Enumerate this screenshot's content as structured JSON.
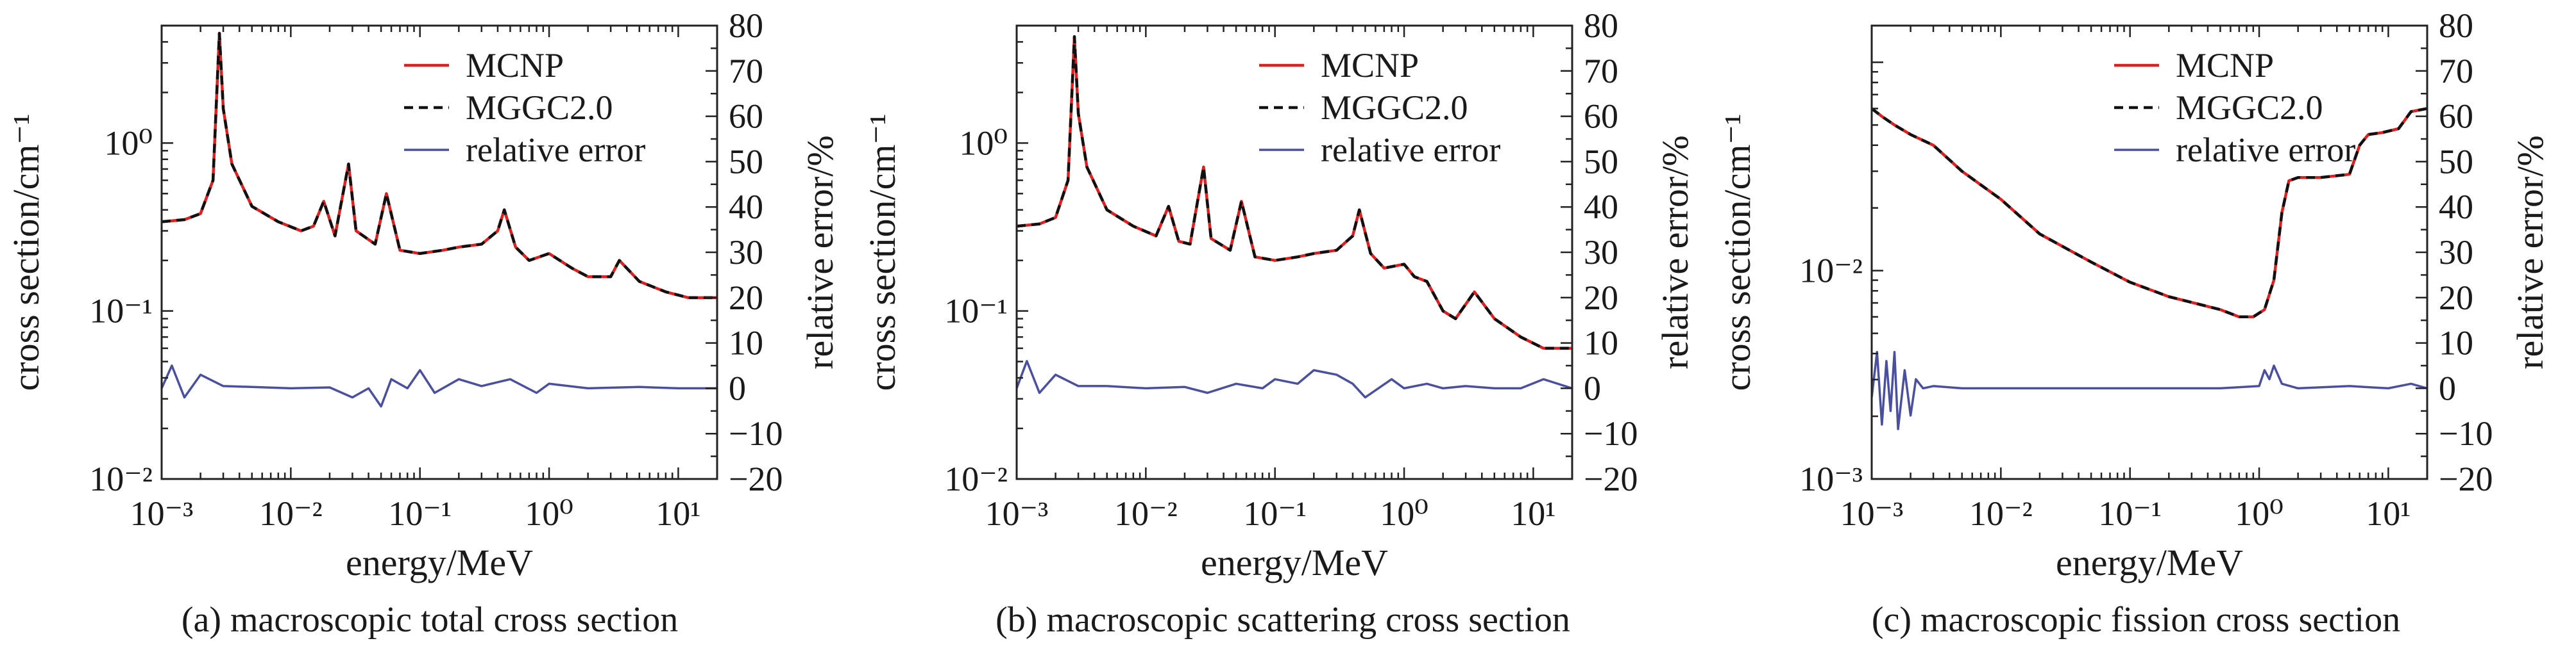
{
  "figure": {
    "captions": [
      "(a) macroscopic total cross section",
      "(b) macroscopic scattering cross section",
      "(c) macroscopic fission cross section"
    ]
  },
  "colors": {
    "mcnp": "#e02020",
    "mggc": "#111111",
    "error": "#4a4fa0"
  },
  "chart_data": [
    {
      "type": "line",
      "title": "",
      "xlabel": "energy/MeV",
      "ylabel": "cross section/cm⁻¹",
      "y2label": "relative error/%",
      "xscale": "log",
      "yscale": "log",
      "xlim": [
        0.001,
        20
      ],
      "ylim": [
        0.01,
        5
      ],
      "y2lim": [
        -20,
        80
      ],
      "x_ticks": [
        0.001,
        0.01,
        0.1,
        1,
        10
      ],
      "x_tick_labels": [
        "10⁻³",
        "10⁻²",
        "10⁻¹",
        "10⁰",
        "10¹"
      ],
      "y_ticks": [
        0.01,
        0.1,
        1
      ],
      "y_tick_labels": [
        "10⁻²",
        "10⁻¹",
        "10⁰"
      ],
      "y2_ticks": [
        -20,
        -10,
        0,
        10,
        20,
        30,
        40,
        50,
        60,
        70,
        80
      ],
      "y2_tick_labels": [
        "−20",
        "−10",
        "0",
        "10",
        "20",
        "30",
        "40",
        "50",
        "60",
        "70",
        "80"
      ],
      "legend_position": "top-right",
      "series": [
        {
          "name": "MCNP",
          "axis": "left",
          "style": "solid",
          "x": [
            0.001,
            0.0015,
            0.002,
            0.0025,
            0.0028,
            0.003,
            0.0035,
            0.005,
            0.008,
            0.012,
            0.015,
            0.018,
            0.022,
            0.028,
            0.032,
            0.045,
            0.055,
            0.07,
            0.1,
            0.15,
            0.2,
            0.3,
            0.4,
            0.45,
            0.55,
            0.7,
            1.0,
            1.5,
            2.0,
            3.0,
            3.5,
            5.0,
            8.0,
            12.0,
            20.0
          ],
          "y": [
            0.34,
            0.35,
            0.38,
            0.6,
            4.5,
            1.6,
            0.75,
            0.42,
            0.34,
            0.3,
            0.32,
            0.45,
            0.28,
            0.75,
            0.3,
            0.25,
            0.5,
            0.23,
            0.22,
            0.23,
            0.24,
            0.25,
            0.3,
            0.4,
            0.24,
            0.2,
            0.22,
            0.18,
            0.16,
            0.16,
            0.2,
            0.15,
            0.13,
            0.12,
            0.12
          ]
        },
        {
          "name": "MGGC2.0",
          "axis": "left",
          "style": "dashed",
          "x": [
            0.001,
            0.0015,
            0.002,
            0.0025,
            0.0028,
            0.003,
            0.0035,
            0.005,
            0.008,
            0.012,
            0.015,
            0.018,
            0.022,
            0.028,
            0.032,
            0.045,
            0.055,
            0.07,
            0.1,
            0.15,
            0.2,
            0.3,
            0.4,
            0.45,
            0.55,
            0.7,
            1.0,
            1.5,
            2.0,
            3.0,
            3.5,
            5.0,
            8.0,
            12.0,
            20.0
          ],
          "y": [
            0.34,
            0.35,
            0.38,
            0.6,
            4.5,
            1.6,
            0.75,
            0.42,
            0.34,
            0.3,
            0.32,
            0.45,
            0.28,
            0.75,
            0.3,
            0.25,
            0.5,
            0.23,
            0.22,
            0.23,
            0.24,
            0.25,
            0.3,
            0.4,
            0.24,
            0.2,
            0.22,
            0.18,
            0.16,
            0.16,
            0.2,
            0.15,
            0.13,
            0.12,
            0.12
          ]
        },
        {
          "name": "relative error",
          "axis": "right",
          "style": "solid",
          "x": [
            0.001,
            0.0012,
            0.0015,
            0.002,
            0.003,
            0.005,
            0.01,
            0.02,
            0.03,
            0.04,
            0.05,
            0.06,
            0.08,
            0.1,
            0.13,
            0.2,
            0.3,
            0.5,
            0.8,
            1.0,
            2.0,
            5.0,
            10.0,
            20.0
          ],
          "y": [
            0,
            5,
            -2,
            3,
            0.5,
            0.3,
            0,
            0.2,
            -2,
            0,
            -4,
            2,
            0,
            4,
            -1,
            2,
            0.5,
            2,
            -1,
            1,
            0,
            0.3,
            0,
            0
          ]
        }
      ]
    },
    {
      "type": "line",
      "title": "",
      "xlabel": "energy/MeV",
      "ylabel": "cross section/cm⁻¹",
      "y2label": "relative error/%",
      "xscale": "log",
      "yscale": "log",
      "xlim": [
        0.001,
        20
      ],
      "ylim": [
        0.01,
        5
      ],
      "y2lim": [
        -20,
        80
      ],
      "x_ticks": [
        0.001,
        0.01,
        0.1,
        1,
        10
      ],
      "x_tick_labels": [
        "10⁻³",
        "10⁻²",
        "10⁻¹",
        "10⁰",
        "10¹"
      ],
      "y_ticks": [
        0.01,
        0.1,
        1
      ],
      "y_tick_labels": [
        "10⁻²",
        "10⁻¹",
        "10⁰"
      ],
      "y2_ticks": [
        -20,
        -10,
        0,
        10,
        20,
        30,
        40,
        50,
        60,
        70,
        80
      ],
      "y2_tick_labels": [
        "−20",
        "−10",
        "0",
        "10",
        "20",
        "30",
        "40",
        "50",
        "60",
        "70",
        "80"
      ],
      "legend_position": "top-right",
      "series": [
        {
          "name": "MCNP",
          "axis": "left",
          "style": "solid",
          "x": [
            0.001,
            0.0015,
            0.002,
            0.0025,
            0.0028,
            0.003,
            0.0035,
            0.005,
            0.008,
            0.012,
            0.015,
            0.018,
            0.022,
            0.028,
            0.032,
            0.045,
            0.055,
            0.07,
            0.1,
            0.15,
            0.2,
            0.3,
            0.4,
            0.45,
            0.55,
            0.7,
            1.0,
            1.2,
            1.5,
            2.0,
            2.5,
            3.5,
            5.0,
            8.0,
            12.0,
            20.0
          ],
          "y": [
            0.32,
            0.33,
            0.36,
            0.6,
            4.3,
            1.5,
            0.72,
            0.4,
            0.32,
            0.28,
            0.42,
            0.26,
            0.25,
            0.72,
            0.27,
            0.23,
            0.45,
            0.21,
            0.2,
            0.21,
            0.22,
            0.23,
            0.28,
            0.4,
            0.22,
            0.18,
            0.19,
            0.16,
            0.15,
            0.1,
            0.09,
            0.13,
            0.09,
            0.07,
            0.06,
            0.06
          ]
        },
        {
          "name": "MGGC2.0",
          "axis": "left",
          "style": "dashed",
          "x": [
            0.001,
            0.0015,
            0.002,
            0.0025,
            0.0028,
            0.003,
            0.0035,
            0.005,
            0.008,
            0.012,
            0.015,
            0.018,
            0.022,
            0.028,
            0.032,
            0.045,
            0.055,
            0.07,
            0.1,
            0.15,
            0.2,
            0.3,
            0.4,
            0.45,
            0.55,
            0.7,
            1.0,
            1.2,
            1.5,
            2.0,
            2.5,
            3.5,
            5.0,
            8.0,
            12.0,
            20.0
          ],
          "y": [
            0.32,
            0.33,
            0.36,
            0.6,
            4.3,
            1.5,
            0.72,
            0.4,
            0.32,
            0.28,
            0.42,
            0.26,
            0.25,
            0.72,
            0.27,
            0.23,
            0.45,
            0.21,
            0.2,
            0.21,
            0.22,
            0.23,
            0.28,
            0.4,
            0.22,
            0.18,
            0.19,
            0.16,
            0.15,
            0.1,
            0.09,
            0.13,
            0.09,
            0.07,
            0.06,
            0.06
          ]
        },
        {
          "name": "relative error",
          "axis": "right",
          "style": "solid",
          "x": [
            0.001,
            0.0012,
            0.0015,
            0.002,
            0.003,
            0.005,
            0.01,
            0.02,
            0.03,
            0.05,
            0.08,
            0.1,
            0.15,
            0.2,
            0.3,
            0.4,
            0.5,
            0.8,
            1.0,
            1.5,
            2.0,
            3.0,
            5.0,
            8.0,
            12.0,
            20.0
          ],
          "y": [
            0,
            6,
            -1,
            3,
            0.5,
            0.5,
            0,
            0.3,
            -1,
            1,
            0,
            2,
            1,
            4,
            3,
            1,
            -2,
            2,
            0,
            1,
            0,
            0.5,
            0,
            0,
            2,
            0
          ]
        }
      ]
    },
    {
      "type": "line",
      "title": "",
      "xlabel": "energy/MeV",
      "ylabel": "cross section/cm⁻¹",
      "y2label": "relative error/%",
      "xscale": "log",
      "yscale": "log",
      "xlim": [
        0.001,
        20
      ],
      "ylim": [
        0.001,
        0.15
      ],
      "y2lim": [
        -20,
        80
      ],
      "x_ticks": [
        0.001,
        0.01,
        0.1,
        1,
        10
      ],
      "x_tick_labels": [
        "10⁻³",
        "10⁻²",
        "10⁻¹",
        "10⁰",
        "10¹"
      ],
      "y_ticks": [
        0.001,
        0.01
      ],
      "y_tick_labels": [
        "10⁻³",
        "10⁻²"
      ],
      "y2_ticks": [
        -20,
        -10,
        0,
        10,
        20,
        30,
        40,
        50,
        60,
        70,
        80
      ],
      "y2_tick_labels": [
        "−20",
        "−10",
        "0",
        "10",
        "20",
        "30",
        "40",
        "50",
        "60",
        "70",
        "80"
      ],
      "legend_position": "top-right",
      "series": [
        {
          "name": "MCNP",
          "axis": "left",
          "style": "solid",
          "x": [
            0.001,
            0.0012,
            0.0015,
            0.002,
            0.003,
            0.005,
            0.01,
            0.02,
            0.05,
            0.1,
            0.2,
            0.5,
            0.7,
            0.9,
            1.1,
            1.3,
            1.5,
            1.7,
            2.0,
            3.0,
            5.0,
            6.0,
            7.0,
            9.0,
            12.0,
            15.0,
            20.0
          ],
          "y": [
            0.06,
            0.055,
            0.05,
            0.045,
            0.04,
            0.03,
            0.022,
            0.015,
            0.011,
            0.0088,
            0.0075,
            0.0065,
            0.006,
            0.006,
            0.0065,
            0.009,
            0.019,
            0.027,
            0.028,
            0.028,
            0.029,
            0.04,
            0.045,
            0.046,
            0.048,
            0.058,
            0.06
          ]
        },
        {
          "name": "MGGC2.0",
          "axis": "left",
          "style": "dashed",
          "x": [
            0.001,
            0.0012,
            0.0015,
            0.002,
            0.003,
            0.005,
            0.01,
            0.02,
            0.05,
            0.1,
            0.2,
            0.5,
            0.7,
            0.9,
            1.1,
            1.3,
            1.5,
            1.7,
            2.0,
            3.0,
            5.0,
            6.0,
            7.0,
            9.0,
            12.0,
            15.0,
            20.0
          ],
          "y": [
            0.06,
            0.055,
            0.05,
            0.045,
            0.04,
            0.03,
            0.022,
            0.015,
            0.011,
            0.0088,
            0.0075,
            0.0065,
            0.006,
            0.006,
            0.0065,
            0.009,
            0.019,
            0.027,
            0.028,
            0.028,
            0.029,
            0.04,
            0.045,
            0.046,
            0.048,
            0.058,
            0.06
          ]
        },
        {
          "name": "relative error",
          "axis": "right",
          "style": "solid",
          "x": [
            0.001,
            0.0011,
            0.0012,
            0.0013,
            0.0014,
            0.0015,
            0.0016,
            0.0018,
            0.002,
            0.0022,
            0.0025,
            0.003,
            0.005,
            0.01,
            0.1,
            0.5,
            1.0,
            1.1,
            1.2,
            1.3,
            1.5,
            2.0,
            5.0,
            10.0,
            15.0,
            20.0
          ],
          "y": [
            -2,
            8,
            -8,
            6,
            -5,
            8,
            -9,
            4,
            -6,
            2,
            0,
            0.5,
            0,
            0,
            0,
            0,
            0.5,
            4,
            2,
            5,
            1,
            0,
            0.5,
            0,
            1,
            0
          ]
        }
      ]
    }
  ]
}
